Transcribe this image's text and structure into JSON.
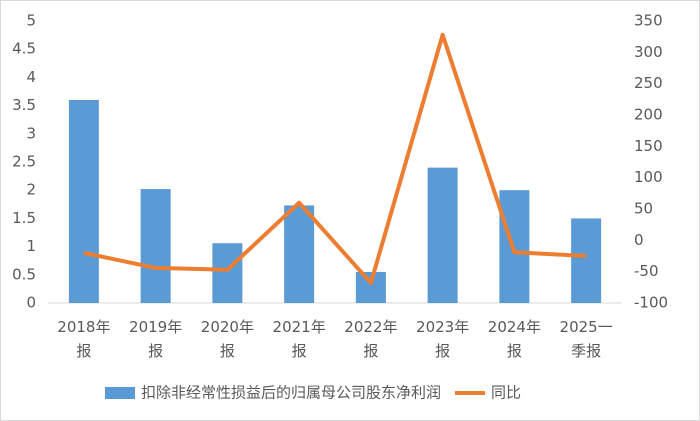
{
  "chart_data": {
    "type": "bar-line",
    "categories": [
      "2018年报",
      "2019年报",
      "2020年报",
      "2021年报",
      "2022年报",
      "2023年报",
      "2024年报",
      "2025一季报"
    ],
    "series": [
      {
        "name": "扣除非经常性损益后的归属母公司股东净利润",
        "type": "bar",
        "color": "#5b9bd5",
        "values": [
          3.6,
          2.02,
          1.06,
          1.73,
          0.55,
          2.4,
          2.0,
          1.5
        ]
      },
      {
        "name": "同比",
        "type": "line",
        "axis": "y2",
        "color": "#ed7d31",
        "values": [
          -20,
          -44,
          -47,
          60,
          -68,
          328,
          -19,
          -25
        ]
      }
    ],
    "ylim": [
      0,
      5
    ],
    "yticks": [
      0,
      0.5,
      1,
      1.5,
      2,
      2.5,
      3,
      3.5,
      4,
      4.5,
      5
    ],
    "y2lim": [
      -100,
      350
    ],
    "y2ticks": [
      -100,
      -50,
      0,
      50,
      100,
      150,
      200,
      250,
      300,
      350
    ],
    "grid": false,
    "legend": "bottom"
  }
}
